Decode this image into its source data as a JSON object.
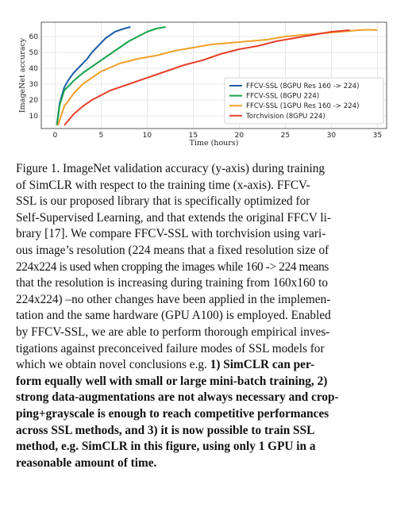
{
  "chart_data": {
    "type": "line",
    "title": "",
    "xlabel": "Time (hours)",
    "ylabel": "ImageNet accuracy",
    "xlim": [
      -1.5,
      36
    ],
    "ylim": [
      2,
      69
    ],
    "xticks": [
      0,
      5,
      10,
      15,
      20,
      25,
      30,
      35
    ],
    "yticks": [
      10,
      20,
      30,
      40,
      50,
      60
    ],
    "grid": true,
    "legend_position": "lower-right",
    "series": [
      {
        "name": "FFCV-SSL (8GPU Res 160 -> 224)",
        "color": "#1f5fa8",
        "x": [
          0.2,
          0.5,
          1,
          1.5,
          2,
          2.5,
          3,
          3.5,
          4,
          4.5,
          5,
          5.5,
          6,
          6.5,
          7,
          7.5,
          8.2
        ],
        "y": [
          5,
          18,
          28,
          33,
          37,
          40,
          43,
          46,
          50,
          53,
          56,
          59,
          61,
          63,
          64,
          65,
          66
        ]
      },
      {
        "name": "FFCV-SSL (8GPU 224)",
        "color": "#1aa34a",
        "x": [
          0.2,
          0.5,
          1,
          2,
          3,
          4,
          5,
          6,
          7,
          8,
          9,
          10,
          11,
          12
        ],
        "y": [
          4,
          17,
          26,
          32,
          37,
          41,
          45,
          49,
          53,
          57,
          60,
          63,
          65,
          66
        ]
      },
      {
        "name": "FFCV-SSL (1GPU Res 160 -> 224)",
        "color": "#f0a12a",
        "x": [
          0.3,
          1,
          2,
          3,
          4,
          5,
          7,
          9,
          11,
          13,
          15,
          17,
          19,
          21,
          23,
          25,
          27,
          29,
          30,
          31,
          32,
          33,
          34,
          35
        ],
        "y": [
          4,
          16,
          24,
          30,
          34,
          38,
          43,
          46,
          48,
          51,
          53,
          55,
          56,
          57,
          58,
          60,
          61,
          62,
          62.5,
          63,
          63.5,
          64,
          64.3,
          64
        ]
      },
      {
        "name": "Torchvision (8GPU 224)",
        "color": "#e8412b",
        "x": [
          1,
          2,
          3,
          4,
          5,
          6,
          8,
          10,
          12,
          14,
          16,
          18,
          20,
          22,
          24,
          26,
          28,
          30,
          32
        ],
        "y": [
          4,
          11,
          16,
          20,
          23,
          26,
          30,
          34,
          38,
          42,
          45,
          49,
          52,
          54,
          57,
          59,
          61,
          63,
          64
        ]
      }
    ]
  },
  "caption": {
    "lines": [
      "Figure 1. ImageNet validation accuracy (y-axis) during training",
      "of SimCLR with respect to the training time (x-axis). FFCV-",
      "SSL is our proposed library that is specifically optimized for",
      "Self-Supervised Learning, and that extends the original FFCV li-",
      "brary [17]. We compare FFCV-SSL with torchvision using vari-",
      "ous image’s resolution (224 means that a fixed resolution size of",
      "224x224 is used when cropping the images while 160 -> 224 means",
      "that the resolution is increasing during training from 160x160 to",
      "224x224) –no other changes have been applied in the implemen-",
      "tation and the same hardware (GPU A100) is employed. Enabled",
      "by FFCV-SSL, we are able to perform thorough empirical inves-",
      "tigations against preconceived failure modes of SSL models for",
      "which we obtain novel conclusions e.g."
    ],
    "bold_tail": " 1) SimCLR can per-",
    "bold_lines": [
      "form equally well with small or large mini-batch training, 2)",
      "strong data-augmentations are not always necessary and crop-",
      "ping+grayscale is enough to reach competitive performances",
      "across SSL methods, and 3) it is now possible to train SSL",
      "method, e.g. SimCLR in this figure, using only 1 GPU in a",
      "reasonable amount of time."
    ]
  }
}
